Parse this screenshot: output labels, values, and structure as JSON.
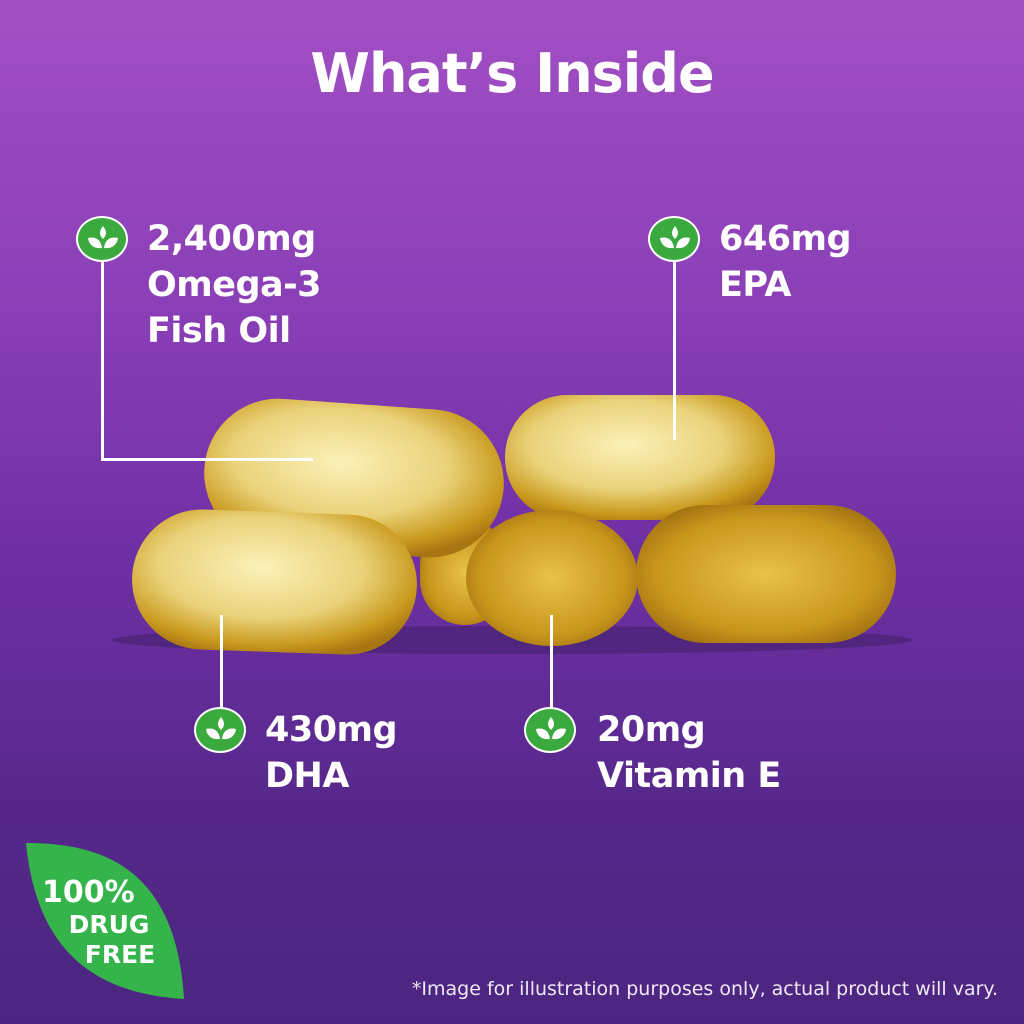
{
  "title": "What’s Inside",
  "callouts": [
    {
      "amount": "2,400mg",
      "name_line1": "Omega-3",
      "name_line2": "Fish Oil",
      "icon": "leaf-sprout-icon"
    },
    {
      "amount": "646mg",
      "name_line1": "EPA",
      "icon": "leaf-sprout-icon"
    },
    {
      "amount": "430mg",
      "name_line1": "DHA",
      "icon": "leaf-sprout-icon"
    },
    {
      "amount": "20mg",
      "name_line1": "Vitamin E",
      "icon": "leaf-sprout-icon"
    }
  ],
  "badge": {
    "line1": "100%",
    "line2": "DRUG",
    "line3": "FREE",
    "color": "#34b44a"
  },
  "disclaimer": "*Image for illustration purposes only, actual product will vary.",
  "colors": {
    "background_top": "#a24fc4",
    "background_bottom": "#4b2680",
    "icon_green": "#3aaa3e",
    "capsule": "#e8c85a"
  }
}
